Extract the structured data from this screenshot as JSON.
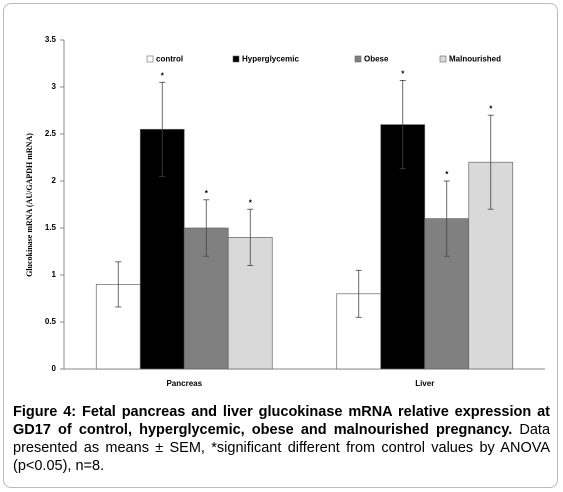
{
  "chart_data": {
    "type": "bar",
    "y_label": "Glucokinase mRNA (AU/GAPDH mRNA)",
    "categories": [
      "Pancreas",
      "Liver"
    ],
    "series": [
      {
        "name": "control",
        "color": "#ffffff",
        "values": [
          0.9,
          0.8
        ],
        "errors": [
          0.24,
          0.25
        ]
      },
      {
        "name": "Hyperglycemic",
        "color": "#000000",
        "values": [
          2.55,
          2.6
        ],
        "errors": [
          0.5,
          0.47
        ],
        "annotation": "*"
      },
      {
        "name": "Obese",
        "color": "#808080",
        "values": [
          1.5,
          1.6
        ],
        "errors": [
          0.3,
          0.4
        ],
        "annotation": "*"
      },
      {
        "name": "Malnourished",
        "color": "#d9d9d9",
        "values": [
          1.4,
          2.2
        ],
        "errors": [
          0.3,
          0.5
        ],
        "annotation": "*"
      }
    ],
    "ylim": [
      0,
      3.5
    ],
    "yticks": [
      0,
      0.5,
      1,
      1.5,
      2,
      2.5,
      3,
      3.5
    ],
    "legend": "top"
  },
  "caption": {
    "title": "Figure 4: Fetal pancreas and liver glucokinase mRNA relative expression at GD17 of control, hyperglycemic, obese and malnourished pregnancy.",
    "text": "Data presented as means ± SEM, *significant different from control values by ANOVA (p<0.05), n=8."
  }
}
